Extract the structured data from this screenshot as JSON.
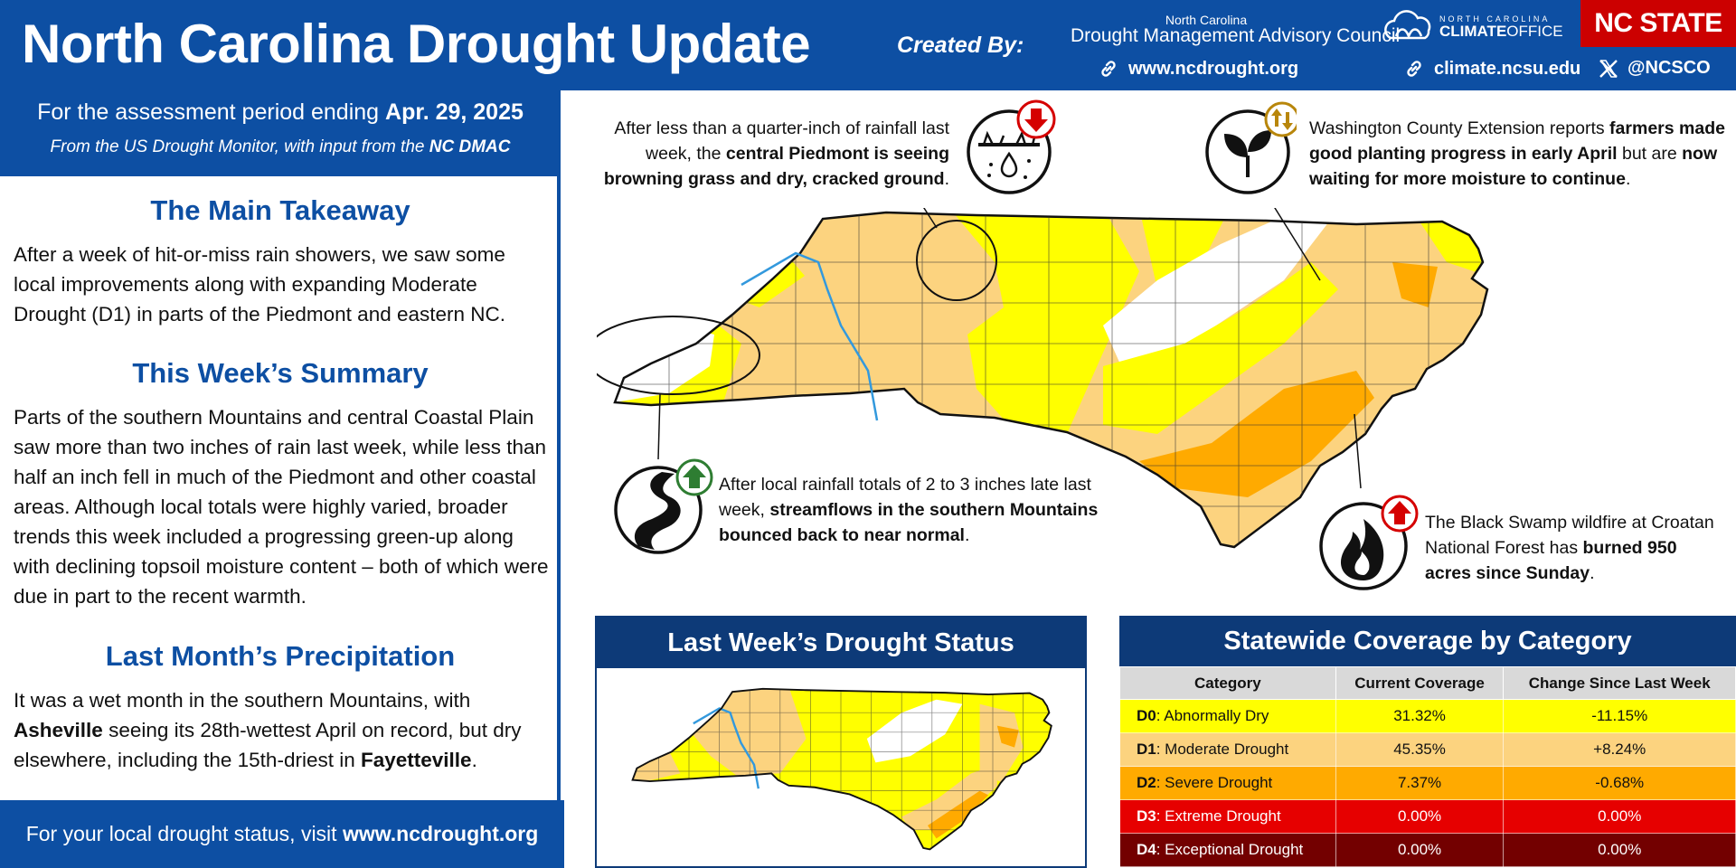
{
  "header": {
    "title": "North Carolina Drought Update",
    "created_by": "Created By:",
    "dmac_line1": "North Carolina",
    "dmac_line2": "Drought Management Advisory Council",
    "link1": "www.ncdrought.org",
    "link2": "climate.ncsu.edu",
    "social": "@NCSCO",
    "cco_small": "NORTH CAROLINA",
    "cco_big_a": "CLIMATE",
    "cco_big_b": "OFFICE",
    "ncstate": "NC STATE"
  },
  "period": {
    "prefix": "For the assessment period ending ",
    "date": "Apr. 29, 2025",
    "source_prefix": "From the US Drought Monitor, with input from the ",
    "source_org": "NC DMAC"
  },
  "sections": {
    "main_takeaway": {
      "heading": "The Main Takeaway",
      "text": "After a week of hit-or-miss rain showers, we saw some local improvements along with expanding Moderate Drought (D1) in parts of the Piedmont and eastern NC."
    },
    "weekly_summary": {
      "heading": "This Week’s Summary",
      "text": "Parts of the southern Mountains and central Coastal Plain saw more than two inches of rain last week, while less than half an inch fell in much of the Piedmont and other coastal areas. Although local totals were highly varied, broader trends this week included a progressing green-up along with declining topsoil moisture content – both of which were due in part to the recent warmth."
    },
    "last_month": {
      "heading": "Last Month’s Precipitation",
      "text_a": "It was a wet month in the southern Mountains, with ",
      "city_a": "Asheville",
      "text_b": " seeing its 28th-wettest April on record, but dry elsewhere, including the 15th-driest in ",
      "city_b": "Fayetteville",
      "text_c": "."
    }
  },
  "footer": {
    "prefix": "For your local drought status, visit ",
    "link": "www.ncdrought.org"
  },
  "callouts": {
    "piedmont": {
      "a": "After less than a quarter-inch of rainfall last week, the ",
      "bold": "central Piedmont is seeing browning grass and dry, cracked ground",
      "b": "."
    },
    "washington": {
      "a": "Washington County Extension reports ",
      "bold1": "farmers made good planting progress in early April",
      "b": " but are ",
      "bold2": "now waiting for more moisture to continue",
      "c": "."
    },
    "mountains": {
      "a": "After local rainfall totals of 2 to 3 inches late last week, ",
      "bold": "streamflows in the southern Mountains bounced back to near normal",
      "b": "."
    },
    "wildfire": {
      "a": "The Black Swamp wildfire at Croatan National Forest has ",
      "bold": "burned 950 acres since Sunday",
      "b": "."
    }
  },
  "last_week": {
    "heading": "Last Week’s Drought Status"
  },
  "coverage": {
    "heading": "Statewide Coverage by Category",
    "columns": [
      "Category",
      "Current Coverage",
      "Change Since Last Week"
    ],
    "rows": [
      {
        "code": "D0",
        "name": ": Abnormally Dry",
        "current": "31.32%",
        "change": "-11.15%",
        "color": "#ffff00",
        "text_color": "#111111"
      },
      {
        "code": "D1",
        "name": ": Moderate Drought",
        "current": "45.35%",
        "change": "+8.24%",
        "color": "#fcd37f",
        "text_color": "#111111"
      },
      {
        "code": "D2",
        "name": ": Severe Drought",
        "current": "7.37%",
        "change": "-0.68%",
        "color": "#ffaa00",
        "text_color": "#111111"
      },
      {
        "code": "D3",
        "name": ": Extreme Drought",
        "current": "0.00%",
        "change": "0.00%",
        "color": "#e60000",
        "text_color": "#ffffff"
      },
      {
        "code": "D4",
        "name": ": Exceptional Drought",
        "current": "0.00%",
        "change": "0.00%",
        "color": "#730000",
        "text_color": "#ffffff"
      }
    ]
  },
  "colors": {
    "brand_blue": "#0d4fa3",
    "panel_navy": "#0d3a78",
    "ncstate_red": "#cc0000",
    "d0": "#ffff00",
    "d1": "#fcd37f",
    "d2": "#ffaa00",
    "d3": "#e60000",
    "d4": "#730000",
    "improve_green": "#2e7d32",
    "degrade_red": "#d50000",
    "mixed_gold": "#b8860b"
  },
  "icons": {
    "link": "link-icon",
    "x": "x-logo-icon",
    "cracked_ground": "cracked-ground-icon",
    "seedling": "seedling-icon",
    "stream": "stream-icon",
    "fire": "fire-icon",
    "arrow_down": "arrow-down-icon",
    "arrow_up": "arrow-up-icon",
    "arrows_mixed": "arrows-up-down-icon"
  }
}
